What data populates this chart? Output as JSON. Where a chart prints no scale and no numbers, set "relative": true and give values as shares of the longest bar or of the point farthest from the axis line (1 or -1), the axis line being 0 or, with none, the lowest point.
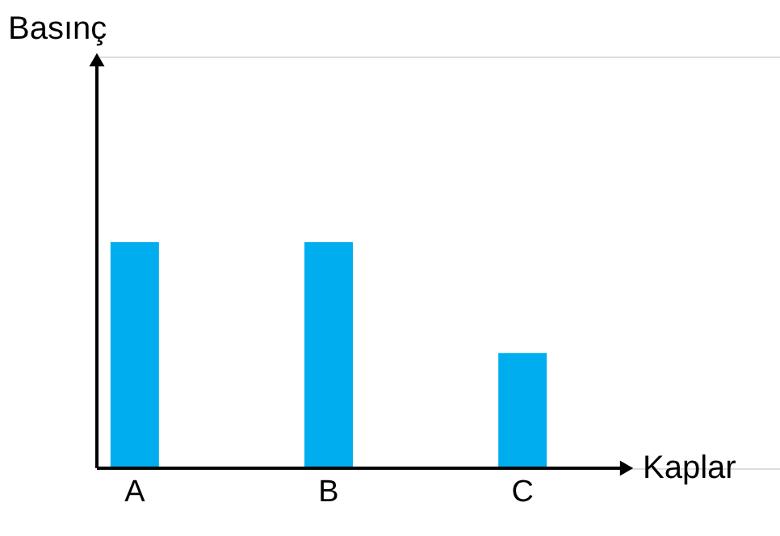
{
  "chart_data": {
    "type": "bar",
    "relative": true,
    "xlabel": "Kaplar",
    "annotations": [
      "Basınç"
    ],
    "categories": [
      "A",
      "B",
      "C"
    ],
    "values": [
      1,
      1,
      0.51
    ],
    "color": "#00aeef"
  }
}
